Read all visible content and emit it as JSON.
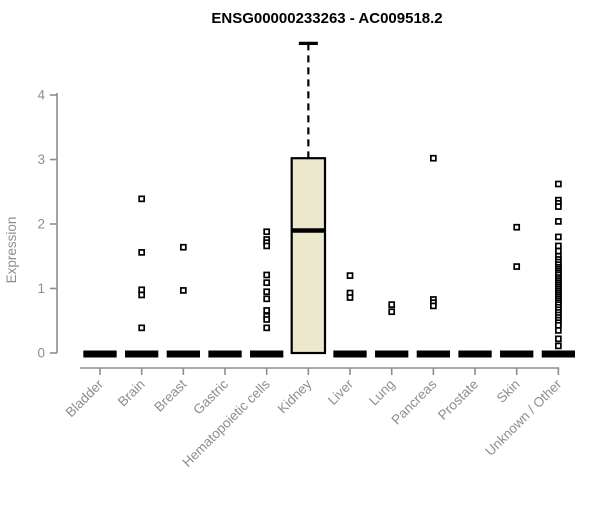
{
  "chart_data": {
    "type": "boxplot",
    "title": "ENSG00000233263 - AC009518.2",
    "ylabel": "Expression",
    "xlabel": "",
    "ylim": [
      0,
      4.9
    ],
    "yticks": [
      0,
      1,
      2,
      3,
      4
    ],
    "grid": false,
    "legend": "none",
    "categories": [
      "Bladder",
      "Brain",
      "Breast",
      "Gastric",
      "Hematopoietic cells",
      "Kidney",
      "Liver",
      "Lung",
      "Pancreas",
      "Prostate",
      "Skin",
      "Unknown / Other"
    ],
    "boxes": [
      {
        "category": "Bladder",
        "q1": 0,
        "median": 0,
        "q3": 0,
        "whisker_low": 0,
        "whisker_high": 0
      },
      {
        "category": "Brain",
        "q1": 0,
        "median": 0,
        "q3": 0,
        "whisker_low": 0,
        "whisker_high": 0
      },
      {
        "category": "Breast",
        "q1": 0,
        "median": 0,
        "q3": 0,
        "whisker_low": 0,
        "whisker_high": 0
      },
      {
        "category": "Gastric",
        "q1": 0,
        "median": 0,
        "q3": 0,
        "whisker_low": 0,
        "whisker_high": 0
      },
      {
        "category": "Hematopoietic cells",
        "q1": 0,
        "median": 0,
        "q3": 0,
        "whisker_low": 0,
        "whisker_high": 0
      },
      {
        "category": "Kidney",
        "q1": 0,
        "median": 1.9,
        "q3": 3.02,
        "whisker_low": 0,
        "whisker_high": 4.8
      },
      {
        "category": "Liver",
        "q1": 0,
        "median": 0,
        "q3": 0,
        "whisker_low": 0,
        "whisker_high": 0
      },
      {
        "category": "Lung",
        "q1": 0,
        "median": 0,
        "q3": 0,
        "whisker_low": 0,
        "whisker_high": 0
      },
      {
        "category": "Pancreas",
        "q1": 0,
        "median": 0,
        "q3": 0,
        "whisker_low": 0,
        "whisker_high": 0
      },
      {
        "category": "Prostate",
        "q1": 0,
        "median": 0,
        "q3": 0,
        "whisker_low": 0,
        "whisker_high": 0
      },
      {
        "category": "Skin",
        "q1": 0,
        "median": 0,
        "q3": 0,
        "whisker_low": 0,
        "whisker_high": 0
      },
      {
        "category": "Unknown / Other",
        "q1": 0,
        "median": 0,
        "q3": 0,
        "whisker_low": 0,
        "whisker_high": 0
      }
    ],
    "outlier_points": [
      [],
      [
        2.39,
        1.56,
        0.98,
        0.9,
        0.39
      ],
      [
        1.64,
        0.97
      ],
      [],
      [
        1.88,
        1.76,
        1.71,
        1.66,
        1.21,
        1.09,
        0.95,
        0.84,
        0.66,
        0.57,
        0.52,
        0.39
      ],
      [],
      [
        1.2,
        0.93,
        0.86
      ],
      [
        0.75,
        0.64
      ],
      [
        3.02,
        0.83,
        0.78,
        0.73
      ],
      [],
      [
        1.95,
        1.34
      ],
      [
        2.62,
        2.37,
        2.32,
        2.27,
        2.04,
        1.8,
        1.66,
        1.58,
        1.5,
        1.45,
        1.41,
        1.37,
        1.33,
        1.3,
        1.27,
        1.24,
        1.21,
        1.17,
        1.14,
        1.11,
        1.08,
        1.05,
        1.02,
        0.99,
        0.96,
        0.93,
        0.9,
        0.87,
        0.84,
        0.81,
        0.78,
        0.75,
        0.71,
        0.67,
        0.63,
        0.59,
        0.55,
        0.51,
        0.47,
        0.43,
        0.35,
        0.22,
        0.11
      ]
    ],
    "colors": {
      "box_fill": "#ece8cd",
      "box_border": "#000000",
      "median": "#000000",
      "whisker": "#000000",
      "point": "#000000",
      "axis": "#8e8e8e",
      "label": "#8e8e8e",
      "title": "#000000",
      "background": "#ffffff"
    }
  }
}
